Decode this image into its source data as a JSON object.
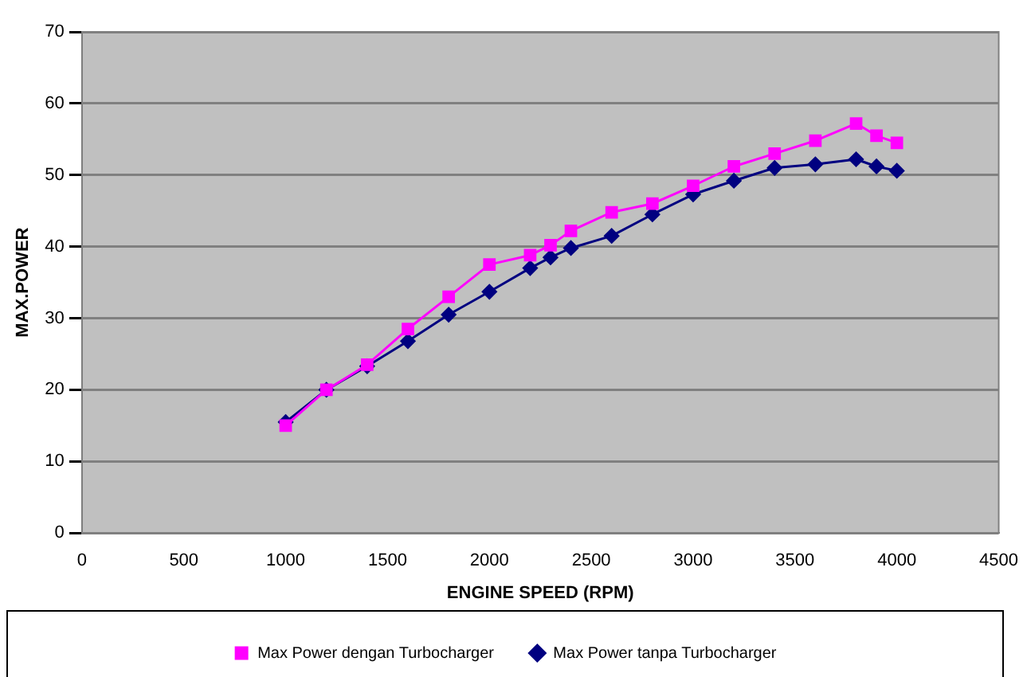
{
  "chart_data": {
    "type": "line",
    "xlabel": "ENGINE SPEED (RPM)",
    "ylabel": "MAX.POWER",
    "x": [
      1000,
      1200,
      1400,
      1600,
      1800,
      2000,
      2200,
      2300,
      2400,
      2600,
      2800,
      3000,
      3200,
      3400,
      3600,
      3800,
      3900,
      4000
    ],
    "series": [
      {
        "name": "Max Power tanpa Turbocharger",
        "color": "#000080",
        "marker": "diamond",
        "values": [
          15.5,
          20,
          23.3,
          26.8,
          30.5,
          33.7,
          37,
          38.5,
          39.8,
          41.5,
          44.5,
          47.3,
          49.2,
          51,
          51.5,
          52.2,
          51.2,
          50.6
        ]
      },
      {
        "name": "Max Power dengan Turbocharger",
        "color": "#ff00ff",
        "marker": "square",
        "values": [
          15,
          20,
          23.5,
          28.5,
          33,
          37.5,
          38.8,
          40.2,
          42.2,
          44.8,
          46,
          48.5,
          51.2,
          53,
          54.8,
          57.2,
          55.5,
          54.5
        ]
      }
    ],
    "xlim": [
      0,
      4500
    ],
    "xticks": [
      0,
      500,
      1000,
      1500,
      2000,
      2500,
      3000,
      3500,
      4000,
      4500
    ],
    "ylim": [
      0,
      70
    ],
    "yticks": [
      0,
      10,
      20,
      30,
      40,
      50,
      60,
      70
    ],
    "grid": "y",
    "legend": "bottom",
    "line_style": "solid"
  }
}
